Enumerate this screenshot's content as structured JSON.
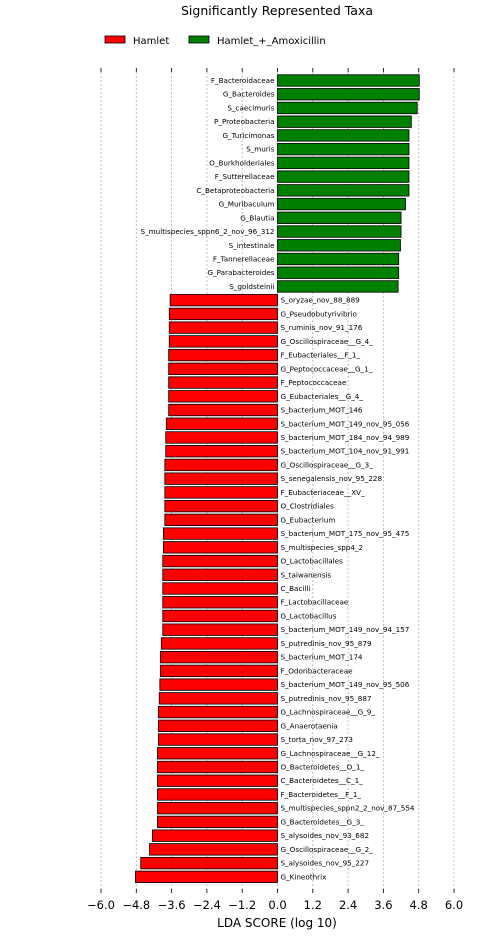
{
  "chart_data": {
    "type": "bar",
    "orientation": "horizontal",
    "title": "Significantly Represented Taxa",
    "xlabel": "LDA SCORE (log 10)",
    "ylabel": "",
    "xlim": [
      -6.0,
      6.0
    ],
    "xticks": [
      -6.0,
      -4.8,
      -3.6,
      -2.4,
      -1.2,
      0.0,
      1.2,
      2.4,
      3.6,
      4.8,
      6.0
    ],
    "xtick_labels": [
      "−6.0",
      "−4.8",
      "−3.6",
      "−2.4",
      "−1.2",
      "0.0",
      "1.2",
      "2.4",
      "3.6",
      "4.8",
      "6.0"
    ],
    "grid": "vertical dotted",
    "legend_position": "top-left",
    "series": [
      {
        "name": "Hamlet",
        "color": "#ff0000"
      },
      {
        "name": "Hamlet_+_Amoxicillin",
        "color": "#008000"
      }
    ],
    "bars": [
      {
        "label": "F_Bacteroidaceae",
        "value": 4.82,
        "group": 1
      },
      {
        "label": "G_Bacteroides",
        "value": 4.82,
        "group": 1
      },
      {
        "label": "S_caecimuris",
        "value": 4.75,
        "group": 1
      },
      {
        "label": "P_Proteobacteria",
        "value": 4.55,
        "group": 1
      },
      {
        "label": "G_Turicimonas",
        "value": 4.47,
        "group": 1
      },
      {
        "label": "S_muris",
        "value": 4.47,
        "group": 1
      },
      {
        "label": "O_Burkholderiales",
        "value": 4.47,
        "group": 1
      },
      {
        "label": "F_Sutterellaceae",
        "value": 4.47,
        "group": 1
      },
      {
        "label": "C_Betaproteobacteria",
        "value": 4.47,
        "group": 1
      },
      {
        "label": "G_Muribaculum",
        "value": 4.35,
        "group": 1
      },
      {
        "label": "G_Blautia",
        "value": 4.2,
        "group": 1
      },
      {
        "label": "S_multispecies_sppn6_2_nov_96_312",
        "value": 4.2,
        "group": 1
      },
      {
        "label": "S_intestinale",
        "value": 4.18,
        "group": 1
      },
      {
        "label": "F_Tannerellaceae",
        "value": 4.12,
        "group": 1
      },
      {
        "label": "G_Parabacteroides",
        "value": 4.12,
        "group": 1
      },
      {
        "label": "S_goldsteinii",
        "value": 4.1,
        "group": 1
      },
      {
        "label": "S_oryzae_nov_88_889",
        "value": -3.65,
        "group": 0
      },
      {
        "label": "G_Pseudobutyrivibrio",
        "value": -3.68,
        "group": 0
      },
      {
        "label": "S_ruminis_nov_91_176",
        "value": -3.68,
        "group": 0
      },
      {
        "label": "G_Oscillospiraceae__G_4_",
        "value": -3.68,
        "group": 0
      },
      {
        "label": "F_Eubacteriales__F_1_",
        "value": -3.7,
        "group": 0
      },
      {
        "label": "G_Peptococcaceae__G_1_",
        "value": -3.7,
        "group": 0
      },
      {
        "label": "F_Peptococcaceae",
        "value": -3.7,
        "group": 0
      },
      {
        "label": "G_Eubacteriales__G_4_",
        "value": -3.7,
        "group": 0
      },
      {
        "label": "S_bacterium_MOT_146",
        "value": -3.7,
        "group": 0
      },
      {
        "label": "S_bacterium_MOT_149_nov_95_056",
        "value": -3.78,
        "group": 0
      },
      {
        "label": "S_bacterium_MOT_184_nov_94_989",
        "value": -3.8,
        "group": 0
      },
      {
        "label": "S_bacterium_MOT_104_nov_91_991",
        "value": -3.8,
        "group": 0
      },
      {
        "label": "G_Oscillospiraceae__G_3_",
        "value": -3.83,
        "group": 0
      },
      {
        "label": "S_senegalensis_nov_95_228",
        "value": -3.83,
        "group": 0
      },
      {
        "label": "F_Eubacteriaceae__XV_",
        "value": -3.83,
        "group": 0
      },
      {
        "label": "O_Clostridiales",
        "value": -3.83,
        "group": 0
      },
      {
        "label": "G_Eubacterium",
        "value": -3.83,
        "group": 0
      },
      {
        "label": "S_bacterium_MOT_175_nov_95_475",
        "value": -3.88,
        "group": 0
      },
      {
        "label": "S_multispecies_spp4_2",
        "value": -3.88,
        "group": 0
      },
      {
        "label": "O_Lactobacillales",
        "value": -3.9,
        "group": 0
      },
      {
        "label": "S_taiwanensis",
        "value": -3.9,
        "group": 0
      },
      {
        "label": "C_Bacilli",
        "value": -3.9,
        "group": 0
      },
      {
        "label": "F_Lactobacillaceae",
        "value": -3.9,
        "group": 0
      },
      {
        "label": "G_Lactobacillus",
        "value": -3.9,
        "group": 0
      },
      {
        "label": "S_bacterium_MOT_149_nov_94_157",
        "value": -3.9,
        "group": 0
      },
      {
        "label": "S_putredinis_nov_95_879",
        "value": -3.95,
        "group": 0
      },
      {
        "label": "S_bacterium_MOT_174",
        "value": -3.98,
        "group": 0
      },
      {
        "label": "F_Odoribacteraceae",
        "value": -3.98,
        "group": 0
      },
      {
        "label": "S_bacterium_MOT_149_nov_95_506",
        "value": -4.0,
        "group": 0
      },
      {
        "label": "S_putredinis_nov_95_887",
        "value": -4.02,
        "group": 0
      },
      {
        "label": "G_Lachnospiraceae__G_9_",
        "value": -4.05,
        "group": 0
      },
      {
        "label": "G_Anaerotaenia",
        "value": -4.05,
        "group": 0
      },
      {
        "label": "S_torta_nov_97_273",
        "value": -4.05,
        "group": 0
      },
      {
        "label": "G_Lachnospiraceae__G_12_",
        "value": -4.08,
        "group": 0
      },
      {
        "label": "O_Bacteroidetes__O_1_",
        "value": -4.08,
        "group": 0
      },
      {
        "label": "C_Bacteroidetes__C_1_",
        "value": -4.08,
        "group": 0
      },
      {
        "label": "F_Bacteroidetes__F_1_",
        "value": -4.08,
        "group": 0
      },
      {
        "label": "S_multispecies_sppn2_2_nov_87_554",
        "value": -4.08,
        "group": 0
      },
      {
        "label": "G_Bacteroidetes__G_3_",
        "value": -4.08,
        "group": 0
      },
      {
        "label": "S_alysoides_nov_93_682",
        "value": -4.25,
        "group": 0
      },
      {
        "label": "G_Oscillospiraceae__G_2_",
        "value": -4.35,
        "group": 0
      },
      {
        "label": "S_alysoides_nov_95_227",
        "value": -4.65,
        "group": 0
      },
      {
        "label": "G_Kineothrix",
        "value": -4.83,
        "group": 0
      }
    ]
  }
}
